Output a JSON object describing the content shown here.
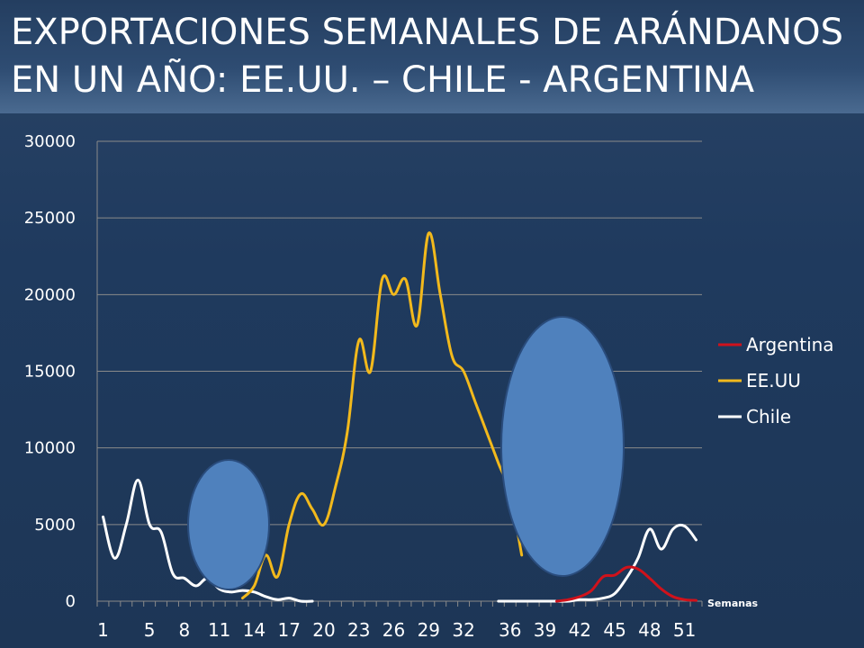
{
  "title": {
    "line1": "EXPORTACIONES SEMANALES DE ARÁNDANOS",
    "line2": "EN UN AÑO: EE.UU. – CHILE - ARGENTINA"
  },
  "colors": {
    "Argentina": "#d0121b",
    "EE.UU": "#f2b91c",
    "Chile": "#ffffff",
    "ellipse_fill": "#4f81bd",
    "ellipse_stroke": "#2a4c7c"
  },
  "chart_data": {
    "type": "line",
    "title": "",
    "xlabel": "Semanas",
    "ylabel": "",
    "ylim": [
      0,
      30000
    ],
    "xlim": [
      1,
      52
    ],
    "y_ticks": [
      "0",
      "5000",
      "10000",
      "15000",
      "20000",
      "25000",
      "30000"
    ],
    "x_tick_labels": [
      "1",
      "5",
      "8",
      "11",
      "14",
      "17",
      "20",
      "23",
      "26",
      "29",
      "32",
      "36",
      "39",
      "42",
      "45",
      "48",
      "51"
    ],
    "grid": "horizontal",
    "legend_position": "right",
    "series": [
      {
        "name": "Argentina",
        "x": [
          40,
          41,
          42,
          43,
          44,
          45,
          46,
          47,
          48,
          49,
          50,
          51,
          52
        ],
        "y": [
          0,
          100,
          300,
          700,
          1600,
          1700,
          2200,
          2100,
          1500,
          800,
          300,
          100,
          50
        ]
      },
      {
        "name": "EE.UU",
        "x": [
          13,
          14,
          15,
          16,
          17,
          18,
          19,
          20,
          21,
          22,
          23,
          24,
          25,
          26,
          27,
          28,
          29,
          30,
          31,
          32,
          33,
          34,
          35,
          36,
          37
        ],
        "y": [
          200,
          1000,
          3000,
          1600,
          5000,
          7000,
          6000,
          5000,
          7500,
          11000,
          17000,
          15000,
          21000,
          20000,
          21000,
          18000,
          24000,
          20000,
          16000,
          15000,
          13000,
          11000,
          9000,
          7000,
          3000
        ]
      },
      {
        "name": "Chile",
        "x": [
          1,
          2,
          3,
          4,
          5,
          6,
          7,
          8,
          9,
          10,
          11,
          12,
          13,
          14,
          15,
          16,
          17,
          18,
          19,
          35,
          36,
          37,
          38,
          39,
          40,
          41,
          42,
          43,
          44,
          45,
          46,
          47,
          48,
          49,
          50,
          51,
          52
        ],
        "y": [
          5500,
          2800,
          5000,
          7900,
          5000,
          4500,
          1800,
          1500,
          1000,
          1500,
          800,
          600,
          700,
          600,
          300,
          100,
          200,
          0,
          0,
          0,
          0,
          0,
          0,
          0,
          0,
          0,
          100,
          100,
          200,
          500,
          1500,
          2800,
          4700,
          3400,
          4700,
          4900,
          4000
        ]
      }
    ]
  }
}
